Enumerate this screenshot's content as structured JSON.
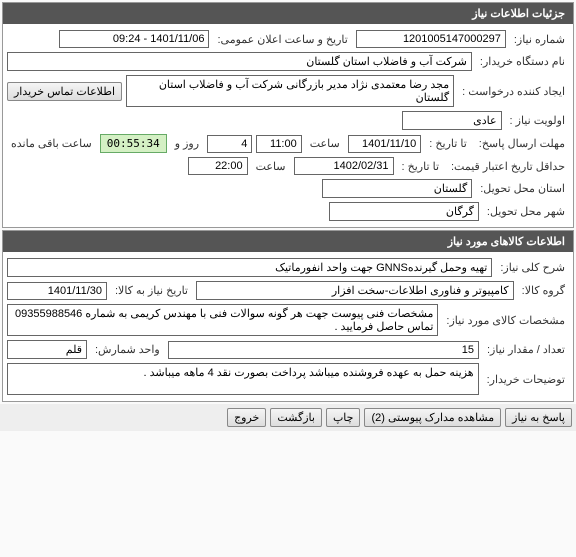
{
  "panel1": {
    "title": "جزئیات اطلاعات نیاز",
    "req_no_label": "شماره نیاز:",
    "req_no": "1201005147000297",
    "announce_label": "تاریخ و ساعت اعلان عمومی:",
    "announce_val": "1401/11/06 - 09:24",
    "buyer_label": "نام دستگاه خریدار:",
    "buyer": "شرکت آب و فاضلاب استان گلستان",
    "creator_label": "ایجاد کننده درخواست :",
    "creator": "مجد رضا معتمدی نژاد مدیر بازرگانی شرکت آب و فاضلاب استان گلستان",
    "contact_btn": "اطلاعات تماس خریدار",
    "priority_label": "اولویت نیاز :",
    "priority": "عادی",
    "deadline_label": "مهلت ارسال پاسخ:",
    "until_label": "تا تاریخ :",
    "d1": "1401/11/10",
    "time_label": "ساعت",
    "t1": "11:00",
    "days": "4",
    "days_label": "روز و",
    "timer": "00:55:34",
    "remain_label": "ساعت باقی مانده",
    "price_valid_label": "حداقل تاریخ اعتبار قیمت:",
    "d2": "1402/02/31",
    "t2": "22:00",
    "province_label": "استان محل تحویل:",
    "province": "گلستان",
    "city_label": "شهر محل تحویل:",
    "city": "گرگان"
  },
  "panel2": {
    "title": "اطلاعات کالاهای مورد نیاز",
    "desc_label": "شرح کلی نیاز:",
    "desc": "تهیه وحمل گیرندهGNNS جهت واحد انفورماتیک",
    "group_label": "گروه کالا:",
    "group": "کامپیوتر و فناوری اطلاعات-سخت افزار",
    "need_date_label": "تاریخ نیاز به کالا:",
    "need_date": "1401/11/30",
    "spec_label": "مشخصات کالای مورد نیاز:",
    "spec": "مشخصات فنی پیوست جهت هر گونه سوالات فنی با مهندس کریمی به شماره 09355988546 تماس حاصل فرمایید .",
    "qty_label": "تعداد / مقدار نیاز:",
    "qty": "15",
    "unit_label": "واحد شمارش:",
    "unit": "قلم",
    "notes_label": "توضیحات خریدار:",
    "notes": "هزینه حمل به عهده فروشنده میباشد پرداخت بصورت نقد 4 ماهه میباشد ."
  },
  "buttons": {
    "b1": "پاسخ به نیاز",
    "b2": "مشاهده مدارک پیوستی (2)",
    "b3": "چاپ",
    "b4": "بازگشت",
    "b5": "خروج"
  }
}
